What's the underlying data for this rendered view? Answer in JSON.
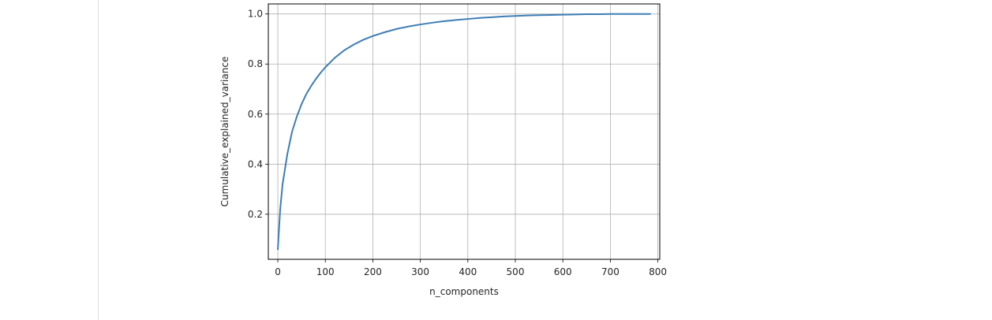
{
  "chart_data": {
    "type": "line",
    "title": "",
    "xlabel": "n_components",
    "ylabel": "Cumulative_explained_variance",
    "xlim": [
      -20,
      804
    ],
    "ylim": [
      0.02,
      1.04
    ],
    "xticks": [
      0,
      100,
      200,
      300,
      400,
      500,
      600,
      700,
      800
    ],
    "yticks": [
      0.2,
      0.4,
      0.6,
      0.8,
      1.0
    ],
    "xtick_labels": [
      "0",
      "100",
      "200",
      "300",
      "400",
      "500",
      "600",
      "700",
      "800"
    ],
    "ytick_labels": [
      "0.2",
      "0.4",
      "0.6",
      "0.8",
      "1.0"
    ],
    "grid": true,
    "colors": {
      "line": "#3d7eb5",
      "grid": "#b0b0b0",
      "axes": "#000000"
    },
    "series": [
      {
        "x": [
          0,
          5,
          10,
          20,
          30,
          40,
          50,
          60,
          70,
          80,
          90,
          100,
          120,
          140,
          160,
          180,
          200,
          225,
          250,
          275,
          300,
          325,
          350,
          375,
          400,
          425,
          450,
          475,
          500,
          525,
          550,
          575,
          600,
          625,
          650,
          675,
          700,
          725,
          750,
          784
        ],
        "y": [
          0.06,
          0.22,
          0.32,
          0.44,
          0.53,
          0.59,
          0.64,
          0.68,
          0.712,
          0.74,
          0.765,
          0.787,
          0.825,
          0.855,
          0.878,
          0.897,
          0.912,
          0.927,
          0.94,
          0.95,
          0.958,
          0.965,
          0.971,
          0.976,
          0.98,
          0.984,
          0.987,
          0.99,
          0.992,
          0.994,
          0.995,
          0.996,
          0.997,
          0.998,
          0.999,
          0.999,
          1.0,
          1.0,
          1.0,
          1.0
        ]
      }
    ]
  }
}
